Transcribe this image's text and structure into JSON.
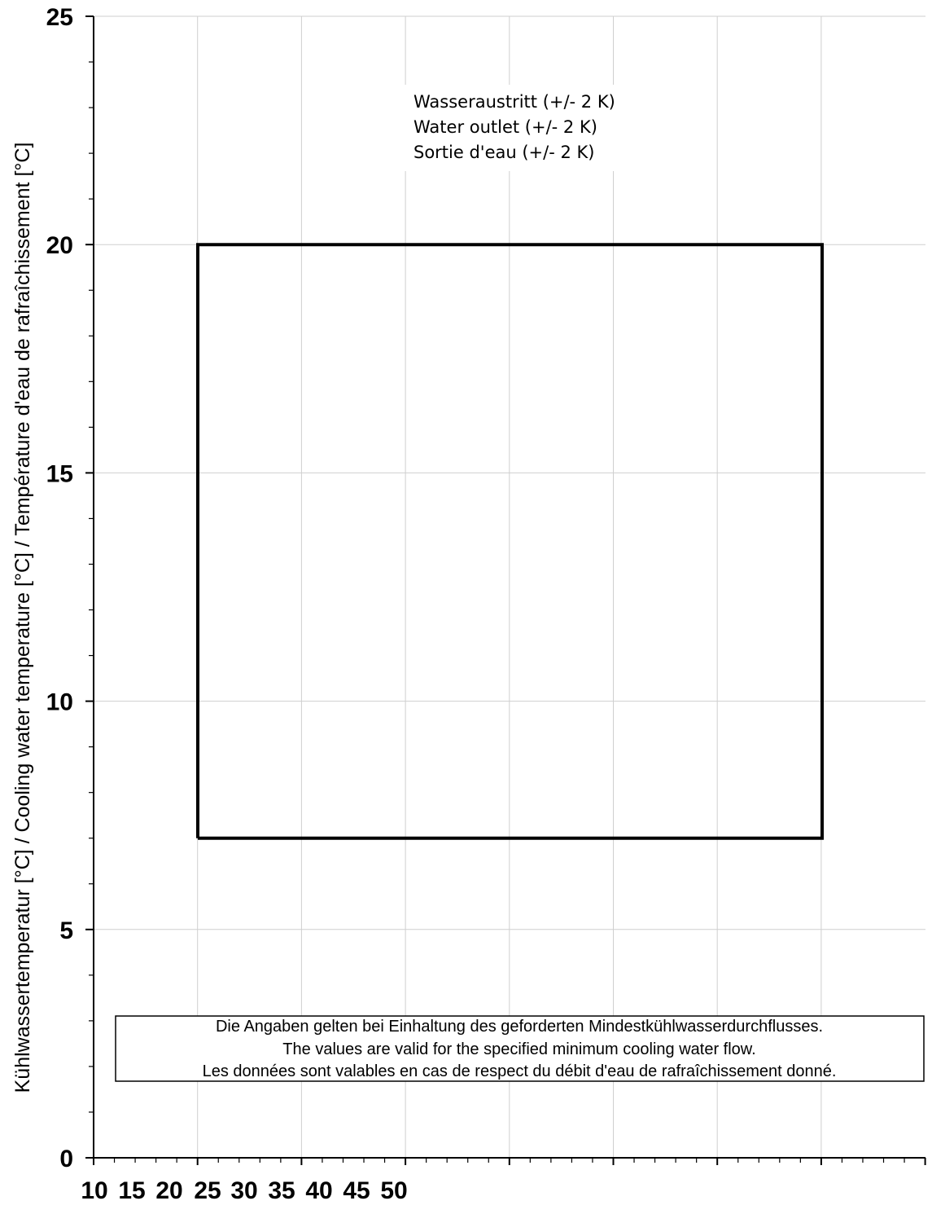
{
  "chart_data": {
    "type": "line",
    "title": "",
    "ylabel": "Kühlwassertemperatur [°C]  /  Cooling water temperature [°C]  /  Température d'eau de rafraîchissement [°C]",
    "xlabel": "",
    "ylim": [
      0,
      25
    ],
    "y_ticks": [
      0,
      5,
      10,
      15,
      20,
      25
    ],
    "y_tick_labels": [
      "0",
      "5",
      "10",
      "15",
      "20",
      "25"
    ],
    "x_tick_labels": [
      "10",
      "15",
      "20",
      "25",
      "30",
      "35",
      "40",
      "45",
      "50"
    ],
    "grid": true,
    "series": [
      {
        "values": [
          7,
          20,
          20,
          7,
          7
        ]
      }
    ],
    "annotations": [
      "Wasseraustritt  (+/- 2 K)",
      "Water outlet (+/- 2 K)",
      "Sortie d'eau (+/- 2 K)"
    ],
    "note": [
      "Die Angaben gelten bei  Einhaltung des geforderten Mindestkühlwasserdurchflusses.",
      "The values are valid for the specified minimum cooling water flow.",
      "Les données sont valables en cas de respect du débit d'eau de rafraîchissement donné."
    ]
  }
}
